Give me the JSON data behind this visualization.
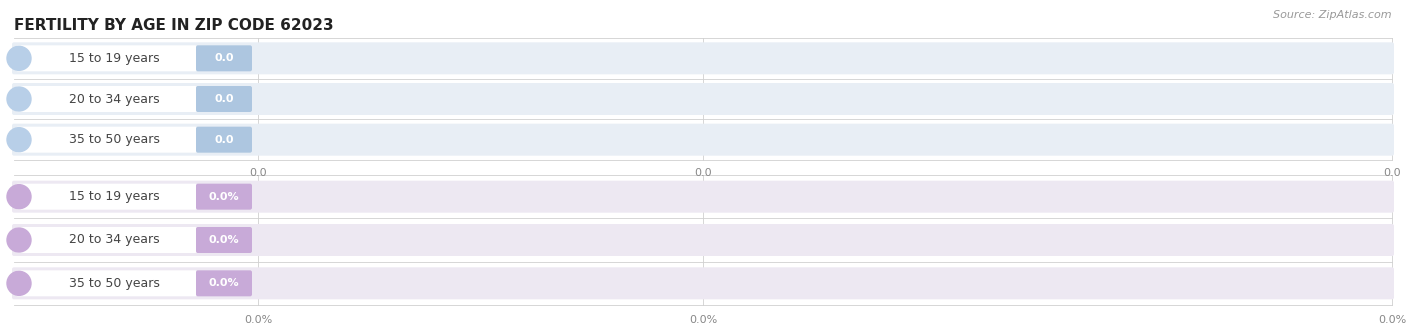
{
  "title": "FERTILITY BY AGE IN ZIP CODE 62023",
  "source": "Source: ZipAtlas.com",
  "background_color": "#ffffff",
  "top_section": {
    "categories": [
      "15 to 19 years",
      "20 to 34 years",
      "35 to 50 years"
    ],
    "values": [
      0.0,
      0.0,
      0.0
    ],
    "bar_bg_color": "#e8eef5",
    "label_pill_color": "#ffffff",
    "circle_color": "#b8cfe8",
    "label_color": "#444444",
    "value_bg_color": "#adc6e0",
    "value_color": "#ffffff",
    "tick_labels": [
      "0.0",
      "0.0",
      "0.0"
    ],
    "tick_label_color": "#888888"
  },
  "bottom_section": {
    "categories": [
      "15 to 19 years",
      "20 to 34 years",
      "35 to 50 years"
    ],
    "values": [
      0.0,
      0.0,
      0.0
    ],
    "bar_bg_color": "#ede8f2",
    "label_pill_color": "#ffffff",
    "circle_color": "#c8aad8",
    "label_color": "#444444",
    "value_bg_color": "#c8aad8",
    "value_color": "#ffffff",
    "tick_labels": [
      "0.0%",
      "0.0%",
      "0.0%"
    ],
    "tick_label_color": "#888888"
  },
  "title_fontsize": 11,
  "label_fontsize": 9,
  "value_fontsize": 8,
  "tick_fontsize": 8,
  "source_fontsize": 8,
  "grid_color": "#d0d0d0"
}
